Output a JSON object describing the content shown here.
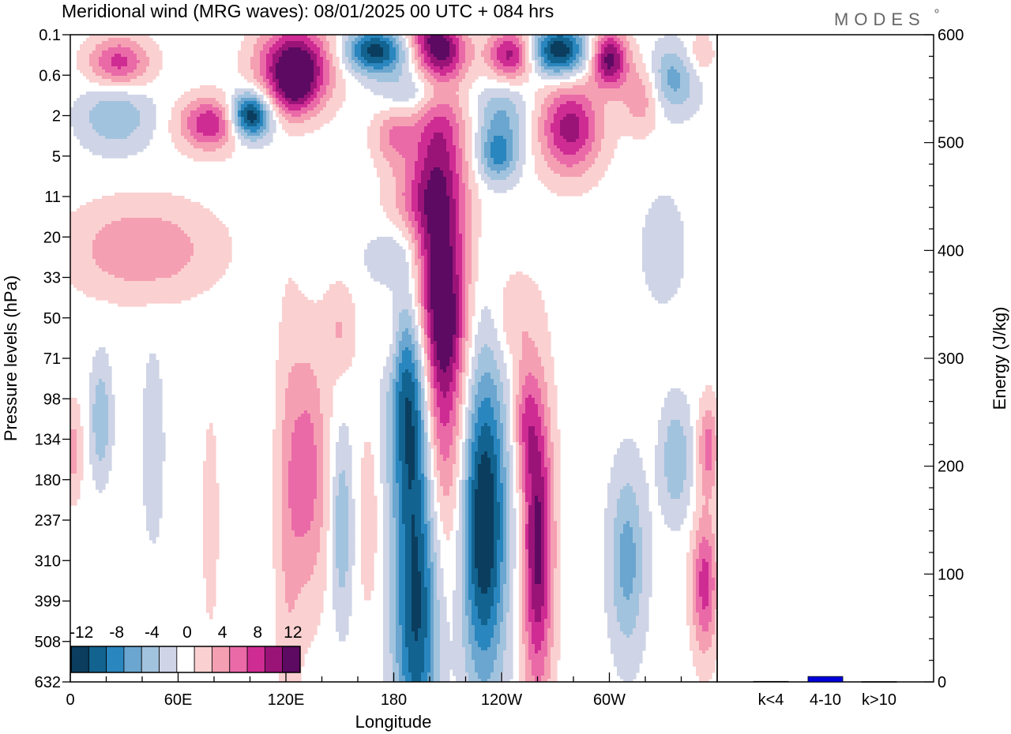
{
  "title": "Meridional wind (MRG waves):  08/01/2025  00 UTC  + 084 hrs",
  "logo": "MODES",
  "colors": {
    "levels": [
      "#0b3d5e",
      "#12638f",
      "#2a86be",
      "#6aa6cf",
      "#a2c3de",
      "#cfd4e6",
      "#ffffff",
      "#fbd0d0",
      "#f59fb3",
      "#ea6aa8",
      "#cf2c93",
      "#9a1478",
      "#5c0a62"
    ],
    "bar": "#0000dd"
  },
  "colorbar": {
    "labels": [
      "-12",
      "-8",
      "-4",
      "0",
      "4",
      "8",
      "12"
    ]
  },
  "chart_data": [
    {
      "type": "heatmap",
      "title": "Meridional wind (MRG waves):  08/01/2025  00 UTC  + 084 hrs",
      "xlabel": "Longitude",
      "ylabel": "Pressure levels (hPa)",
      "x_ticks": [
        "0",
        "60E",
        "120E",
        "180",
        "120W",
        "60W"
      ],
      "x_tick_degrees": [
        0,
        60,
        120,
        180,
        240,
        300
      ],
      "xlim": [
        0,
        360
      ],
      "y_ticks": [
        "0.1",
        "0.6",
        "2",
        "5",
        "11",
        "20",
        "33",
        "50",
        "71",
        "98",
        "134",
        "180",
        "237",
        "310",
        "399",
        "508",
        "632"
      ],
      "contour_levels": [
        -12,
        -10,
        -8,
        -6,
        -4,
        -2,
        0,
        2,
        4,
        6,
        8,
        10,
        12
      ],
      "features": [
        {
          "lon": 205,
          "level": 6.3,
          "lon_width": 11,
          "level_height": 4.2,
          "value": 14
        },
        {
          "lon": 193,
          "level": 13.5,
          "lon_width": 9,
          "level_height": 3.4,
          "value": -13
        },
        {
          "lon": 189,
          "level": 8.8,
          "lon_width": 8,
          "level_height": 1.8,
          "value": -10
        },
        {
          "lon": 230,
          "level": 12.0,
          "lon_width": 9,
          "level_height": 2.8,
          "value": -14
        },
        {
          "lon": 260,
          "level": 12.6,
          "lon_width": 6,
          "level_height": 2.6,
          "value": 12
        },
        {
          "lon": 253,
          "level": 9.5,
          "lon_width": 5,
          "level_height": 1.0,
          "value": 5
        },
        {
          "lon": 310,
          "level": 13.0,
          "lon_width": 7,
          "level_height": 1.6,
          "value": -6
        },
        {
          "lon": 337,
          "level": 10.5,
          "lon_width": 6,
          "level_height": 1.0,
          "value": -5
        },
        {
          "lon": 353,
          "level": 13.6,
          "lon_width": 5,
          "level_height": 1.2,
          "value": 8
        },
        {
          "lon": 355,
          "level": 10.2,
          "lon_width": 4,
          "level_height": 0.8,
          "value": 6
        },
        {
          "lon": 132,
          "level": 10.8,
          "lon_width": 8,
          "level_height": 2.2,
          "value": 6
        },
        {
          "lon": 121,
          "level": 12.4,
          "lon_width": 5,
          "level_height": 4.0,
          "value": 2.5
        },
        {
          "lon": 151,
          "level": 12.2,
          "lon_width": 4,
          "level_height": 1.6,
          "value": -5
        },
        {
          "lon": 166,
          "level": 12.0,
          "lon_width": 4,
          "level_height": 1.6,
          "value": 2.5
        },
        {
          "lon": 17,
          "level": 9.5,
          "lon_width": 4,
          "level_height": 1.0,
          "value": -5
        },
        {
          "lon": 46,
          "level": 10.2,
          "lon_width": 4,
          "level_height": 1.6,
          "value": -3
        },
        {
          "lon": 78,
          "level": 12.0,
          "lon_width": 3,
          "level_height": 1.8,
          "value": 2.5
        },
        {
          "lon": 2,
          "level": 10.3,
          "lon_width": 3,
          "level_height": 0.8,
          "value": 4
        },
        {
          "lon": 40,
          "level": 5.3,
          "lon_width": 28,
          "level_height": 0.8,
          "value": 5
        },
        {
          "lon": 188,
          "level": 4.0,
          "lon_width": 10,
          "level_height": 0.6,
          "value": 3
        },
        {
          "lon": 330,
          "level": 5.3,
          "lon_width": 8,
          "level_height": 0.9,
          "value": -3
        },
        {
          "lon": 180,
          "level": 5.5,
          "lon_width": 12,
          "level_height": 0.5,
          "value": -2.5
        },
        {
          "lon": 246,
          "level": 7.0,
          "lon_width": 8,
          "level_height": 0.8,
          "value": 3
        },
        {
          "lon": 210,
          "level": 7.2,
          "lon_width": 6,
          "level_height": 0.8,
          "value": 2.5
        },
        {
          "lon": 178,
          "level": 7.5,
          "lon_width": 4,
          "level_height": 0.8,
          "value": 2.5
        },
        {
          "lon": 150,
          "level": 7.3,
          "lon_width": 6,
          "level_height": 0.8,
          "value": 3
        },
        {
          "lon": 100,
          "level": 2.0,
          "lon_width": 8,
          "level_height": 0.4,
          "value": -14
        },
        {
          "lon": 125,
          "level": 0.8,
          "lon_width": 14,
          "level_height": 0.7,
          "value": 14
        },
        {
          "lon": 170,
          "level": 0.4,
          "lon_width": 12,
          "level_height": 0.4,
          "value": -12
        },
        {
          "lon": 207,
          "level": 0.5,
          "lon_width": 10,
          "level_height": 0.4,
          "value": 6
        },
        {
          "lon": 245,
          "level": 0.5,
          "lon_width": 9,
          "level_height": 0.45,
          "value": 10
        },
        {
          "lon": 272,
          "level": 0.4,
          "lon_width": 11,
          "level_height": 0.45,
          "value": -13
        },
        {
          "lon": 300,
          "level": 0.6,
          "lon_width": 7,
          "level_height": 0.5,
          "value": 12
        },
        {
          "lon": 335,
          "level": 1.1,
          "lon_width": 10,
          "level_height": 0.6,
          "value": -6
        },
        {
          "lon": 27,
          "level": 0.7,
          "lon_width": 12,
          "level_height": 0.45,
          "value": 8
        },
        {
          "lon": 78,
          "level": 2.2,
          "lon_width": 12,
          "level_height": 0.45,
          "value": 9
        },
        {
          "lon": 25,
          "level": 2.0,
          "lon_width": 14,
          "level_height": 0.6,
          "value": -5
        },
        {
          "lon": 180,
          "level": 2.5,
          "lon_width": 8,
          "level_height": 0.5,
          "value": 5
        },
        {
          "lon": 240,
          "level": 2.0,
          "lon_width": 10,
          "level_height": 0.6,
          "value": -5
        },
        {
          "lon": 278,
          "level": 2.3,
          "lon_width": 12,
          "level_height": 0.8,
          "value": 10
        },
        {
          "lon": 318,
          "level": 1.5,
          "lon_width": 8,
          "level_height": 0.6,
          "value": 5
        },
        {
          "lon": 195,
          "level": 1.4,
          "lon_width": 14,
          "level_height": 0.4,
          "value": -5
        },
        {
          "lon": 238,
          "level": 3.0,
          "lon_width": 8,
          "level_height": 0.45,
          "value": -7
        },
        {
          "lon": 125,
          "level": 1.5,
          "lon_width": 8,
          "level_height": 0.4,
          "value": 4
        },
        {
          "lon": 350,
          "level": 0.5,
          "lon_width": 6,
          "level_height": 0.4,
          "value": 3
        },
        {
          "lon": 200,
          "level": 0.0,
          "lon_width": 10,
          "level_height": 0.3,
          "value": 5
        }
      ]
    },
    {
      "type": "bar",
      "categories": [
        "k<4",
        "4-10",
        "k>10"
      ],
      "values": [
        0.5,
        5,
        0.3
      ],
      "ylabel": "Energy (J/kg)",
      "ylim": [
        0,
        600
      ],
      "y_ticks": [
        "0",
        "100",
        "200",
        "300",
        "400",
        "500",
        "600"
      ]
    }
  ]
}
